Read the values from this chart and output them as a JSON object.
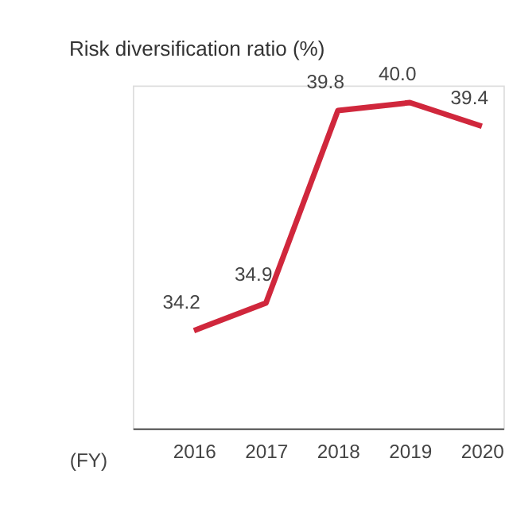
{
  "chart_data": {
    "type": "line",
    "title": "Risk diversification ratio (%)",
    "xlabel": "(FY)",
    "categories": [
      "2016",
      "2017",
      "2018",
      "2019",
      "2020"
    ],
    "series": [
      {
        "color": "#d0273c",
        "values": [
          34.2,
          34.9,
          39.8,
          40.0,
          39.4
        ],
        "value_labels": [
          "34.2",
          "34.9",
          "39.8",
          "40.0",
          "39.4"
        ]
      }
    ],
    "grid": false,
    "marker": "none",
    "line_style": "solid"
  }
}
